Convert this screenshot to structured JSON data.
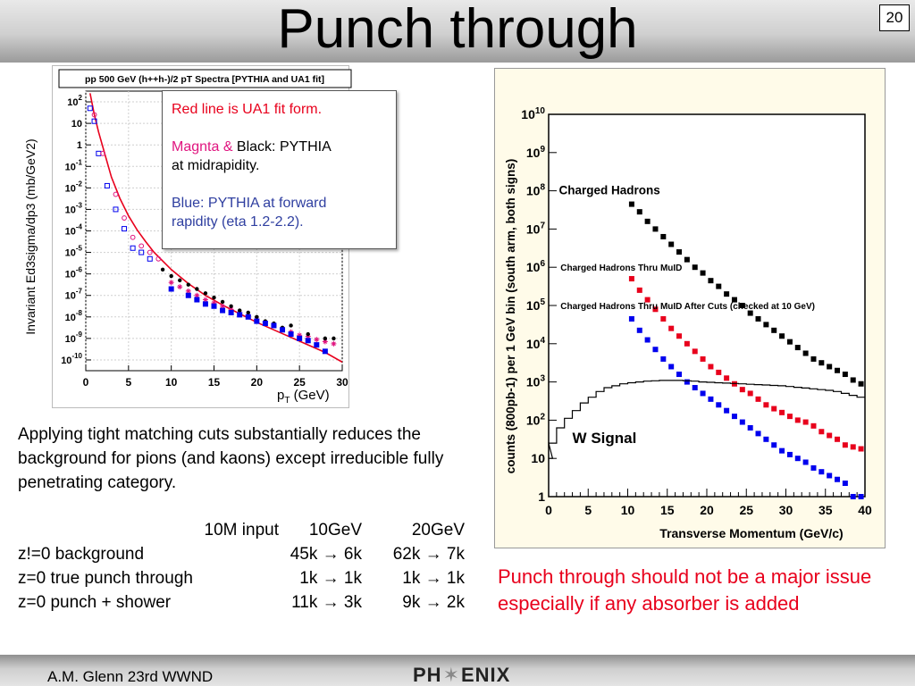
{
  "slide": {
    "title": "Punch through",
    "page_number": "20"
  },
  "colors": {
    "red": "#e8001c",
    "magenta": "#e0157f",
    "blue": "#2f3fa0",
    "plot_blue": "#0000ee"
  },
  "note": {
    "red_line": "Red line is UA1 fit form.",
    "magenta_label": "Magnta &",
    "black_label": " Black: PYTHIA",
    "midrapidity": "at midrapidity.",
    "blue_line1": "Blue: PYTHIA at forward",
    "blue_line2": "rapidity (eta 1.2-2.2)."
  },
  "body_text": "Applying tight matching cuts substantially reduces the background for pions (and kaons) except irreducible fully penetrating category.",
  "table": {
    "headers": [
      "",
      "10M input",
      "10GeV",
      "20GeV"
    ],
    "rows": [
      [
        "z!=0 background",
        "",
        "45k → 6k",
        "62k → 7k"
      ],
      [
        "z=0 true punch through",
        "",
        "1k → 1k",
        "1k → 1k"
      ],
      [
        "z=0 punch + shower",
        "",
        "11k → 3k",
        "9k → 2k"
      ]
    ]
  },
  "conclusion": "Punch through should not be a major issue especially if any absorber is added",
  "footer": {
    "author": "A.M. Glenn 23rd WWND",
    "logo_left": "PH",
    "logo_star": "✶",
    "logo_right": "ENIX"
  },
  "chart_data": [
    {
      "type": "scatter",
      "title": "pp 500 GeV (h++h-)/2 pT Spectra [PYTHIA and UA1 fit]",
      "xlabel": "p",
      "xlabel_sub": "T",
      "xlabel_unit": " (GeV)",
      "ylabel": "Invariant Ed3sigma/dp3 (mb/GeV2)",
      "xlim": [
        0,
        30
      ],
      "ylim_log10": [
        -10.5,
        2.5
      ],
      "log_y": true,
      "grid": true,
      "x_ticks": [
        "0",
        "5",
        "10",
        "15",
        "20",
        "25",
        "30"
      ],
      "y_ticks": [
        {
          "e": 2,
          "label": "10",
          "sup": "2"
        },
        {
          "e": 1,
          "label": "10",
          "sup": ""
        },
        {
          "e": 0,
          "label": "1",
          "sup": ""
        },
        {
          "e": -1,
          "label": "10",
          "sup": "-1"
        },
        {
          "e": -2,
          "label": "10",
          "sup": "-2"
        },
        {
          "e": -3,
          "label": "10",
          "sup": "-3"
        },
        {
          "e": -4,
          "label": "10",
          "sup": "-4"
        },
        {
          "e": -5,
          "label": "10",
          "sup": "-5"
        },
        {
          "e": -6,
          "label": "10",
          "sup": "-6"
        },
        {
          "e": -7,
          "label": "10",
          "sup": "-7"
        },
        {
          "e": -8,
          "label": "10",
          "sup": "-8"
        },
        {
          "e": -9,
          "label": "10",
          "sup": "-9"
        },
        {
          "e": -10,
          "label": "10",
          "sup": "-10"
        }
      ],
      "series": [
        {
          "name": "UA1 fit",
          "mark": "line",
          "color": "#e8001c",
          "x": [
            0.5,
            1,
            1.5,
            2,
            3,
            4,
            5,
            6,
            7,
            8,
            10,
            12,
            14,
            16,
            18,
            20,
            22,
            24,
            26,
            28,
            30
          ],
          "log10_y": [
            2.4,
            1.4,
            0.6,
            -0.1,
            -1.5,
            -2.5,
            -3.3,
            -3.95,
            -4.5,
            -5.0,
            -5.8,
            -6.45,
            -7.0,
            -7.45,
            -7.85,
            -8.25,
            -8.6,
            -8.95,
            -9.3,
            -9.65,
            -10.1
          ]
        },
        {
          "name": "PYTHIA forward",
          "mark": "open-square",
          "color": "#0000ee",
          "x": [
            0.5,
            1,
            1.5,
            2.5,
            3.5,
            4.5,
            5.5,
            6.5,
            7.5
          ],
          "log10_y": [
            1.7,
            1.1,
            -0.4,
            -1.9,
            -3.0,
            -3.9,
            -4.8,
            -5.0,
            -5.3
          ]
        },
        {
          "name": "PYTHIA midrapidity",
          "mark": "open-circle",
          "color": "#e0157f",
          "x": [
            1,
            2,
            3.5,
            4.5,
            5.5,
            6.5,
            7.5,
            8.5
          ],
          "log10_y": [
            1.4,
            -0.4,
            -2.3,
            -3.4,
            -4.3,
            -4.7,
            -5.0,
            -5.3
          ]
        },
        {
          "name": "PYTHIA midrapidity",
          "mark": "star",
          "color": "#e0157f",
          "x": [
            10,
            11,
            12,
            13,
            14,
            15,
            16,
            17,
            18,
            19,
            20,
            21,
            22,
            23,
            24,
            25,
            26,
            27,
            28,
            29
          ],
          "log10_y": [
            -6.4,
            -6.6,
            -6.8,
            -7.0,
            -7.2,
            -7.35,
            -7.5,
            -7.65,
            -7.8,
            -7.95,
            -8.1,
            -8.25,
            -8.4,
            -8.55,
            -8.7,
            -8.85,
            -8.9,
            -9.05,
            -9.15,
            -9.25
          ]
        },
        {
          "name": "PYTHIA midrapidity",
          "mark": "filled-dot",
          "color": "#000000",
          "x": [
            9,
            10,
            11,
            12,
            13,
            14,
            15,
            16,
            17,
            18,
            19,
            20,
            21,
            22,
            23,
            24,
            26,
            28,
            29
          ],
          "log10_y": [
            -5.8,
            -6.1,
            -6.3,
            -6.5,
            -6.7,
            -6.9,
            -7.1,
            -7.3,
            -7.5,
            -7.7,
            -7.8,
            -8.0,
            -8.2,
            -8.3,
            -8.5,
            -8.4,
            -8.8,
            -9.0,
            -9.0
          ]
        },
        {
          "name": "PYTHIA forward",
          "mark": "filled-square",
          "color": "#0000ee",
          "x": [
            10,
            12,
            13,
            14,
            15,
            16,
            17,
            18,
            19,
            20,
            21,
            22,
            23,
            24,
            25,
            26,
            27,
            28
          ],
          "log10_y": [
            -6.7,
            -7.0,
            -7.2,
            -7.4,
            -7.5,
            -7.7,
            -7.8,
            -7.9,
            -8.0,
            -8.2,
            -8.3,
            -8.4,
            -8.6,
            -8.8,
            -9.0,
            -9.1,
            -9.3,
            -9.6
          ]
        }
      ]
    },
    {
      "type": "scatter",
      "xlabel": "Transverse Momentum (GeV/c)",
      "ylabel": "counts (800pb-1) per 1 GeV bin (south arm, both signs)",
      "xlim": [
        0,
        40
      ],
      "ylim_log10": [
        0,
        10
      ],
      "log_y": true,
      "grid": false,
      "x_ticks": [
        "0",
        "5",
        "10",
        "15",
        "20",
        "25",
        "30",
        "35",
        "40"
      ],
      "y_ticks": [
        {
          "e": 0,
          "label": "1",
          "sup": ""
        },
        {
          "e": 1,
          "label": "10",
          "sup": ""
        },
        {
          "e": 2,
          "label": "10",
          "sup": "2"
        },
        {
          "e": 3,
          "label": "10",
          "sup": "3"
        },
        {
          "e": 4,
          "label": "10",
          "sup": "4"
        },
        {
          "e": 5,
          "label": "10",
          "sup": "5"
        },
        {
          "e": 6,
          "label": "10",
          "sup": "6"
        },
        {
          "e": 7,
          "label": "10",
          "sup": "7"
        },
        {
          "e": 8,
          "label": "10",
          "sup": "8"
        },
        {
          "e": 9,
          "label": "10",
          "sup": "9"
        },
        {
          "e": 10,
          "label": "10",
          "sup": "10"
        }
      ],
      "annotations": [
        {
          "text": "Charged Hadrons",
          "x": 1.3,
          "log10_y": 8.0,
          "size": "large"
        },
        {
          "text": "Charged Hadrons Thru MuID",
          "x": 1.5,
          "log10_y": 6.0,
          "size": "small"
        },
        {
          "text": "Charged Hadrons Thru MuID After Cuts (checked at 10 GeV)",
          "x": 1.5,
          "log10_y": 5.0,
          "size": "small"
        },
        {
          "text": "W Signal",
          "x": 3.0,
          "log10_y": 1.5,
          "size": "large"
        }
      ],
      "series": [
        {
          "name": "Charged Hadrons",
          "mark": "filled-square",
          "color": "#000000",
          "x": [
            10.5,
            11.5,
            12.5,
            13.5,
            14.5,
            15.5,
            16.5,
            17.5,
            18.5,
            19.5,
            20.5,
            21.5,
            22.5,
            23.5,
            24.5,
            25.5,
            26.5,
            27.5,
            28.5,
            29.5,
            30.5,
            31.5,
            32.5,
            33.5,
            34.5,
            35.5,
            36.5,
            37.5,
            38.5,
            39.5
          ],
          "log10_y": [
            7.65,
            7.45,
            7.2,
            7.0,
            6.8,
            6.6,
            6.4,
            6.2,
            6.0,
            5.85,
            5.65,
            5.5,
            5.3,
            5.15,
            5.0,
            4.8,
            4.65,
            4.5,
            4.35,
            4.2,
            4.05,
            3.9,
            3.75,
            3.6,
            3.5,
            3.4,
            3.3,
            3.2,
            3.05,
            2.95
          ]
        },
        {
          "name": "Charged Hadrons Thru MuID",
          "mark": "filled-square",
          "color": "#e8001c",
          "x": [
            10.5,
            11.5,
            12.5,
            13.5,
            14.5,
            15.5,
            16.5,
            17.5,
            18.5,
            19.5,
            20.5,
            21.5,
            22.5,
            23.5,
            24.5,
            25.5,
            26.5,
            27.5,
            28.5,
            29.5,
            30.5,
            31.5,
            32.5,
            33.5,
            34.5,
            35.5,
            36.5,
            37.5,
            38.5,
            39.5
          ],
          "log10_y": [
            5.7,
            5.4,
            5.15,
            4.9,
            4.65,
            4.4,
            4.2,
            4.0,
            3.8,
            3.6,
            3.4,
            3.25,
            3.1,
            2.95,
            2.8,
            2.7,
            2.55,
            2.4,
            2.3,
            2.2,
            2.1,
            2.0,
            1.95,
            1.85,
            1.7,
            1.6,
            1.5,
            1.35,
            1.3,
            1.25
          ]
        },
        {
          "name": "Charged Hadrons Thru MuID After Cuts (checked at 10 GeV)",
          "mark": "filled-square",
          "color": "#0000ee",
          "x": [
            10.5,
            11.5,
            12.5,
            13.5,
            14.5,
            15.5,
            16.5,
            17.5,
            18.5,
            19.5,
            20.5,
            21.5,
            22.5,
            23.5,
            24.5,
            25.5,
            26.5,
            27.5,
            28.5,
            29.5,
            30.5,
            31.5,
            32.5,
            33.5,
            34.5,
            35.5,
            36.5,
            37.5,
            38.5,
            39.5
          ],
          "log10_y": [
            4.65,
            4.35,
            4.1,
            3.85,
            3.6,
            3.4,
            3.2,
            3.0,
            2.85,
            2.7,
            2.55,
            2.4,
            2.25,
            2.1,
            1.95,
            1.8,
            1.65,
            1.5,
            1.35,
            1.2,
            1.1,
            1.0,
            0.9,
            0.75,
            0.65,
            0.55,
            0.45,
            0.35,
            0.0,
            0.0
          ]
        },
        {
          "name": "W Signal",
          "mark": "step",
          "color": "#000000",
          "x": [
            0,
            0.5,
            1.5,
            2.5,
            3.5,
            4.5,
            5.5,
            6.5,
            7.5,
            8.5,
            9.5,
            10.5,
            11.5,
            12.5,
            13.5,
            14.5,
            15.5,
            16.5,
            17.5,
            18.5,
            19.5,
            20.5,
            21.5,
            22.5,
            23.5,
            24.5,
            25.5,
            26.5,
            27.5,
            28.5,
            29.5,
            30.5,
            31.5,
            32.5,
            33.5,
            34.5,
            35.5,
            36.5,
            37.5,
            38.5,
            39.5
          ],
          "log10_y": [
            1.0,
            1.4,
            1.8,
            2.05,
            2.25,
            2.45,
            2.6,
            2.75,
            2.85,
            2.9,
            2.95,
            2.98,
            3.0,
            3.02,
            3.03,
            3.04,
            3.04,
            3.04,
            3.03,
            3.02,
            3.0,
            2.99,
            2.98,
            2.97,
            2.96,
            2.95,
            2.94,
            2.93,
            2.92,
            2.91,
            2.9,
            2.88,
            2.86,
            2.84,
            2.82,
            2.8,
            2.78,
            2.75,
            2.7,
            2.65,
            2.6
          ]
        }
      ]
    }
  ]
}
